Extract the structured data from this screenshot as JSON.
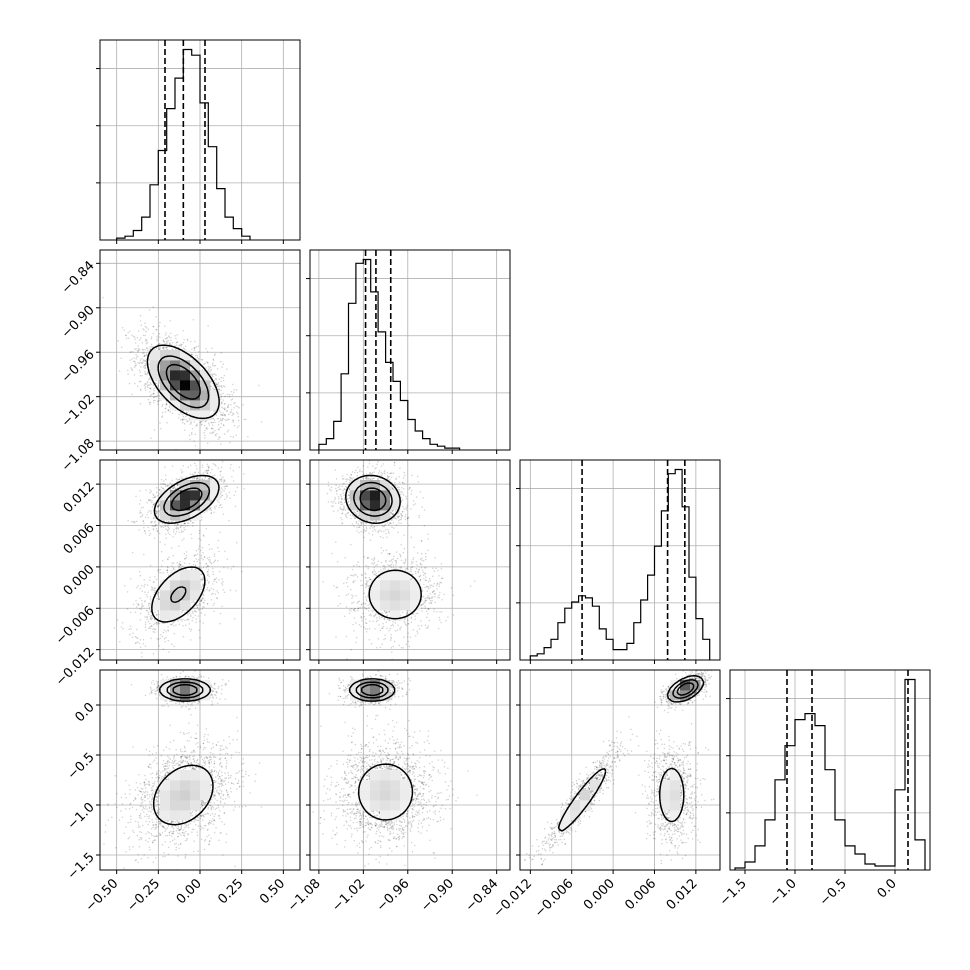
{
  "chart_data": {
    "type": "corner",
    "colors": {
      "line": "#000000",
      "grid": "#b0b0b0",
      "points": "#000000"
    },
    "grid": true,
    "parameters": [
      {
        "range": [
          -0.6,
          0.6
        ],
        "ticks": [
          -0.5,
          -0.25,
          0.0,
          0.25,
          0.5
        ],
        "tick_labels": [
          "−0.50",
          "−0.25",
          "0.00",
          "0.25",
          "0.50"
        ]
      },
      {
        "range": [
          -1.092,
          -0.822
        ],
        "ticks": [
          -1.08,
          -1.02,
          -0.96,
          -0.9,
          -0.84
        ],
        "tick_labels": [
          "−1.08",
          "−1.02",
          "−0.96",
          "−0.90",
          "−0.84"
        ]
      },
      {
        "range": [
          -0.0135,
          0.0155
        ],
        "ticks": [
          -0.012,
          -0.006,
          0.0,
          0.006,
          0.012
        ],
        "tick_labels": [
          "−0.012",
          "−0.006",
          "0.000",
          "0.006",
          "0.012"
        ]
      },
      {
        "range": [
          -1.65,
          0.35
        ],
        "ticks": [
          -1.5,
          -1.0,
          -0.5,
          0.0
        ],
        "tick_labels": [
          "−1.5",
          "−1.0",
          "−0.5",
          "0.0"
        ]
      }
    ],
    "marginals": [
      {
        "param": 0,
        "bin_edges": [
          -0.5,
          -0.45,
          -0.4,
          -0.35,
          -0.3,
          -0.25,
          -0.2,
          -0.15,
          -0.1,
          -0.05,
          0.0,
          0.05,
          0.1,
          0.15,
          0.2,
          0.25,
          0.3
        ],
        "counts": [
          1,
          2,
          5,
          12,
          29,
          47,
          69,
          85,
          100,
          97,
          72,
          49,
          27,
          12,
          6,
          2
        ],
        "quantiles": [
          -0.21,
          -0.1,
          0.03
        ]
      },
      {
        "param": 1,
        "bin_edges": [
          -1.08,
          -1.07,
          -1.06,
          -1.05,
          -1.04,
          -1.03,
          -1.02,
          -1.01,
          -1.0,
          -0.99,
          -0.98,
          -0.97,
          -0.96,
          -0.95,
          -0.94,
          -0.93,
          -0.92,
          -0.91,
          -0.9,
          -0.89
        ],
        "counts": [
          3,
          6,
          15,
          40,
          77,
          98,
          100,
          83,
          62,
          46,
          36,
          26,
          16,
          10,
          6,
          3,
          2,
          1,
          1
        ],
        "quantiles": [
          -1.017,
          -1.003,
          -0.983
        ]
      },
      {
        "param": 2,
        "bin_edges": [
          -0.012,
          -0.011,
          -0.01,
          -0.009,
          -0.008,
          -0.007,
          -0.006,
          -0.005,
          -0.004,
          -0.003,
          -0.002,
          -0.001,
          0.0,
          0.001,
          0.002,
          0.003,
          0.004,
          0.005,
          0.006,
          0.007,
          0.008,
          0.009,
          0.01,
          0.011,
          0.012,
          0.013,
          0.014
        ],
        "counts": [
          2,
          3,
          6,
          10,
          18,
          25,
          28,
          31,
          30,
          26,
          15,
          10,
          5,
          5,
          8,
          18,
          29,
          41,
          55,
          72,
          90,
          92,
          74,
          40,
          20,
          10
        ],
        "quantiles": [
          -0.0045,
          0.0079,
          0.0104
        ]
      },
      {
        "param": 3,
        "bin_edges": [
          -1.6,
          -1.5,
          -1.4,
          -1.3,
          -1.2,
          -1.1,
          -1.0,
          -0.9,
          -0.8,
          -0.7,
          -0.6,
          -0.5,
          -0.4,
          -0.3,
          -0.2,
          -0.1,
          0.0,
          0.1,
          0.2,
          0.3
        ],
        "counts": [
          1,
          4,
          12,
          25,
          45,
          62,
          75,
          78,
          72,
          50,
          25,
          12,
          8,
          3,
          2,
          2,
          40,
          95,
          15
        ],
        "quantiles": [
          -1.08,
          -0.83,
          0.13
        ]
      }
    ],
    "joint_components": {
      "1_0": [
        {
          "weight": 1.0,
          "mean": [
            -0.1,
            -1.0
          ],
          "sd": [
            0.1,
            0.023
          ],
          "rho": -0.55
        }
      ],
      "2_0": [
        {
          "weight": 0.62,
          "mean": [
            -0.08,
            0.0098
          ],
          "sd": [
            0.09,
            0.0016
          ],
          "rho": 0.5
        },
        {
          "weight": 0.38,
          "mean": [
            -0.13,
            -0.004
          ],
          "sd": [
            0.1,
            0.0025
          ],
          "rho": 0.5
        }
      ],
      "2_1": [
        {
          "weight": 0.62,
          "mean": [
            -1.007,
            0.0098
          ],
          "sd": [
            0.017,
            0.0016
          ],
          "rho": -0.1
        },
        {
          "weight": 0.38,
          "mean": [
            -0.977,
            -0.004
          ],
          "sd": [
            0.025,
            0.0025
          ],
          "rho": 0.0
        }
      ],
      "3_0": [
        {
          "weight": 0.35,
          "mean": [
            -0.09,
            0.15
          ],
          "sd": [
            0.07,
            0.05
          ],
          "rho": 0.0
        },
        {
          "weight": 0.65,
          "mean": [
            -0.1,
            -0.9
          ],
          "sd": [
            0.12,
            0.2
          ],
          "rho": 0.3
        }
      ],
      "3_1": [
        {
          "weight": 0.35,
          "mean": [
            -1.008,
            0.15
          ],
          "sd": [
            0.014,
            0.05
          ],
          "rho": 0.0
        },
        {
          "weight": 0.65,
          "mean": [
            -0.99,
            -0.87
          ],
          "sd": [
            0.026,
            0.2
          ],
          "rho": 0.0
        }
      ],
      "3_2": [
        {
          "weight": 0.35,
          "mean": [
            0.0105,
            0.16
          ],
          "sd": [
            0.0012,
            0.06
          ],
          "rho": 0.5
        },
        {
          "weight": 0.3,
          "mean": [
            -0.0045,
            -0.95
          ],
          "sd": [
            0.0024,
            0.22
          ],
          "rho": 0.93
        },
        {
          "weight": 0.35,
          "mean": [
            0.0085,
            -0.9
          ],
          "sd": [
            0.0013,
            0.2
          ],
          "rho": 0.0
        }
      ]
    }
  }
}
